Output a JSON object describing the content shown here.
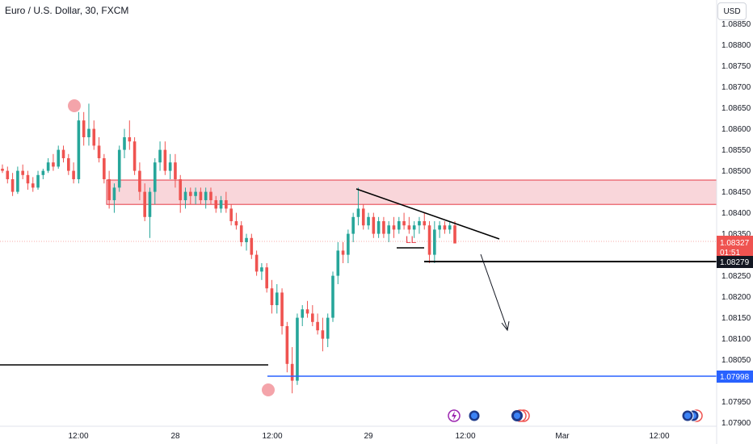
{
  "header": {
    "symbol_title": "Euro / U.S. Dollar, 30, FXCM",
    "currency_button": "USD"
  },
  "chart_data": {
    "type": "candlestick",
    "title": "Euro / U.S. Dollar, 30, FXCM",
    "y_axis": {
      "ticks": [
        "1.08850",
        "1.08800",
        "1.08750",
        "1.08700",
        "1.08650",
        "1.08600",
        "1.08550",
        "1.08500",
        "1.08450",
        "1.08400",
        "1.08350",
        "1.08250",
        "1.08200",
        "1.08150",
        "1.08100",
        "1.08050",
        "1.07950",
        "1.07900"
      ],
      "range": [
        1.0788,
        1.0888
      ]
    },
    "x_axis": {
      "ticks": [
        "12:00",
        "28",
        "12:00",
        "29",
        "12:00",
        "Mar",
        "12:00"
      ]
    },
    "price_labels": {
      "last_price": "1.08327",
      "countdown": "01:51",
      "support_level": "1.08279",
      "lower_level": "1.07998"
    },
    "annotations": {
      "pattern_label": "LL"
    },
    "supply_zone": {
      "top": 1.08478,
      "bottom": 1.0842
    },
    "colors": {
      "up": "#26a69a",
      "down": "#ef5350",
      "zone_fill": "#f7c5cb",
      "zone_border": "#e53945",
      "blue_level": "#2962ff",
      "marker": "#f4a4aa"
    },
    "candles_ohlc": [
      [
        1.08505,
        1.08515,
        1.08495,
        1.085
      ],
      [
        1.085,
        1.0851,
        1.0847,
        1.0848
      ],
      [
        1.0848,
        1.08495,
        1.0844,
        1.0845
      ],
      [
        1.0845,
        1.0851,
        1.08445,
        1.085
      ],
      [
        1.085,
        1.08515,
        1.0848,
        1.0849
      ],
      [
        1.0849,
        1.085,
        1.08455,
        1.0847
      ],
      [
        1.0847,
        1.08485,
        1.0845,
        1.0846
      ],
      [
        1.0846,
        1.085,
        1.08455,
        1.0849
      ],
      [
        1.0849,
        1.08505,
        1.0848,
        1.085
      ],
      [
        1.085,
        1.0853,
        1.08495,
        1.0852
      ],
      [
        1.0852,
        1.0854,
        1.085,
        1.0851
      ],
      [
        1.0851,
        1.0856,
        1.08505,
        1.0855
      ],
      [
        1.0855,
        1.0856,
        1.0852,
        1.0853
      ],
      [
        1.0853,
        1.0854,
        1.0849,
        1.085
      ],
      [
        1.085,
        1.0852,
        1.0847,
        1.0848
      ],
      [
        1.0848,
        1.0864,
        1.0847,
        1.0862
      ],
      [
        1.0862,
        1.0864,
        1.0856,
        1.0858
      ],
      [
        1.0858,
        1.0866,
        1.0856,
        1.086
      ],
      [
        1.086,
        1.0862,
        1.0855,
        1.0856
      ],
      [
        1.0856,
        1.0858,
        1.0852,
        1.0853
      ],
      [
        1.0853,
        1.0854,
        1.0847,
        1.0848
      ],
      [
        1.0848,
        1.085,
        1.0841,
        1.0843
      ],
      [
        1.0843,
        1.0847,
        1.084,
        1.0846
      ],
      [
        1.0846,
        1.0856,
        1.0845,
        1.0855
      ],
      [
        1.0855,
        1.086,
        1.0853,
        1.0858
      ],
      [
        1.0858,
        1.0862,
        1.0855,
        1.0857
      ],
      [
        1.0857,
        1.0858,
        1.0849,
        1.085
      ],
      [
        1.085,
        1.0852,
        1.0843,
        1.0845
      ],
      [
        1.0845,
        1.0847,
        1.0838,
        1.0839
      ],
      [
        1.0839,
        1.0846,
        1.0834,
        1.0845
      ],
      [
        1.0845,
        1.0853,
        1.0842,
        1.0852
      ],
      [
        1.0852,
        1.0857,
        1.085,
        1.0855
      ],
      [
        1.0855,
        1.0857,
        1.0849,
        1.085
      ],
      [
        1.085,
        1.0854,
        1.0848,
        1.0852
      ],
      [
        1.0852,
        1.0854,
        1.0846,
        1.0848
      ],
      [
        1.0848,
        1.0849,
        1.084,
        1.0843
      ],
      [
        1.0843,
        1.0846,
        1.0841,
        1.0845
      ],
      [
        1.0845,
        1.0846,
        1.0842,
        1.0844
      ],
      [
        1.0844,
        1.0846,
        1.0842,
        1.0845
      ],
      [
        1.0845,
        1.0846,
        1.0842,
        1.0843
      ],
      [
        1.0843,
        1.0846,
        1.0841,
        1.0845
      ],
      [
        1.0845,
        1.0846,
        1.0842,
        1.0843
      ],
      [
        1.0843,
        1.0844,
        1.084,
        1.0841
      ],
      [
        1.0841,
        1.0844,
        1.084,
        1.0843
      ],
      [
        1.0843,
        1.0845,
        1.084,
        1.0841
      ],
      [
        1.0841,
        1.0842,
        1.0837,
        1.0838
      ],
      [
        1.0838,
        1.084,
        1.0836,
        1.0837
      ],
      [
        1.0837,
        1.0838,
        1.0832,
        1.0833
      ],
      [
        1.0833,
        1.0835,
        1.0831,
        1.0834
      ],
      [
        1.0834,
        1.0835,
        1.0829,
        1.083
      ],
      [
        1.083,
        1.0831,
        1.0825,
        1.0826
      ],
      [
        1.0826,
        1.0828,
        1.0824,
        1.0827
      ],
      [
        1.0827,
        1.0828,
        1.0821,
        1.0822
      ],
      [
        1.0822,
        1.0824,
        1.0816,
        1.0818
      ],
      [
        1.0818,
        1.0823,
        1.0816,
        1.0821
      ],
      [
        1.0821,
        1.0822,
        1.0811,
        1.0813
      ],
      [
        1.0813,
        1.0814,
        1.0802,
        1.0804
      ],
      [
        1.0804,
        1.0808,
        1.0797,
        1.08
      ],
      [
        1.08,
        1.0816,
        1.0799,
        1.0815
      ],
      [
        1.0815,
        1.0818,
        1.0813,
        1.0817
      ],
      [
        1.0817,
        1.0819,
        1.0815,
        1.0816
      ],
      [
        1.0816,
        1.0818,
        1.0813,
        1.0814
      ],
      [
        1.0814,
        1.0816,
        1.0811,
        1.0812
      ],
      [
        1.0812,
        1.0815,
        1.0807,
        1.081
      ],
      [
        1.081,
        1.0816,
        1.0808,
        1.0815
      ],
      [
        1.0815,
        1.0826,
        1.0814,
        1.0825
      ],
      [
        1.0825,
        1.0833,
        1.0823,
        1.0831
      ],
      [
        1.0831,
        1.0833,
        1.0828,
        1.083
      ],
      [
        1.083,
        1.0836,
        1.0828,
        1.0835
      ],
      [
        1.0835,
        1.084,
        1.0833,
        1.0839
      ],
      [
        1.0839,
        1.0846,
        1.0837,
        1.0841
      ],
      [
        1.0841,
        1.0842,
        1.0836,
        1.0837
      ],
      [
        1.0837,
        1.084,
        1.0836,
        1.0839
      ],
      [
        1.0839,
        1.084,
        1.0834,
        1.0835
      ],
      [
        1.0835,
        1.0839,
        1.0834,
        1.0838
      ],
      [
        1.0838,
        1.0839,
        1.0834,
        1.0835
      ],
      [
        1.0835,
        1.0838,
        1.0833,
        1.0837
      ],
      [
        1.0837,
        1.0839,
        1.0834,
        1.0836
      ],
      [
        1.0836,
        1.0839,
        1.0835,
        1.0838
      ],
      [
        1.0838,
        1.084,
        1.0836,
        1.0837
      ],
      [
        1.0837,
        1.0839,
        1.0835,
        1.0836
      ],
      [
        1.0836,
        1.0838,
        1.0834,
        1.0837
      ],
      [
        1.0837,
        1.0839,
        1.0835,
        1.0838
      ],
      [
        1.0838,
        1.084,
        1.0836,
        1.0837
      ],
      [
        1.0837,
        1.0838,
        1.0828,
        1.083
      ],
      [
        1.083,
        1.0838,
        1.0828,
        1.0836
      ],
      [
        1.0836,
        1.0838,
        1.0834,
        1.0837
      ],
      [
        1.0837,
        1.0838,
        1.0835,
        1.0836
      ],
      [
        1.0836,
        1.0838,
        1.0835,
        1.0837
      ],
      [
        1.0837,
        1.0838,
        1.0833,
        1.08327
      ]
    ]
  }
}
